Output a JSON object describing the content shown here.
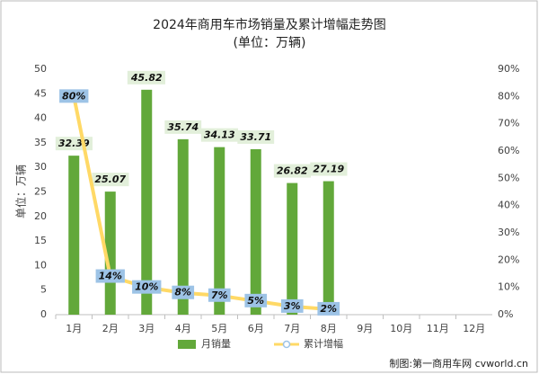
{
  "chart_data": {
    "type": "bar",
    "title": "2024年商用车市场销量及累计增幅走势图",
    "subtitle": "(单位：万辆)",
    "y_label": "单位：万辆",
    "source": "制图:第一商用车网 cvworld.cn",
    "categories": [
      "1月",
      "2月",
      "3月",
      "4月",
      "5月",
      "6月",
      "7月",
      "8月",
      "9月",
      "10月",
      "11月",
      "12月"
    ],
    "series": [
      {
        "name": "月销量",
        "type": "bar",
        "color": "#62a83a",
        "values": [
          32.39,
          25.07,
          45.82,
          35.74,
          34.13,
          33.71,
          26.82,
          27.19,
          null,
          null,
          null,
          null
        ]
      },
      {
        "name": "累计增幅",
        "type": "line",
        "axis": "y2",
        "color": "#ffd966",
        "marker_color": "#9dc3e6",
        "values": [
          80,
          14,
          10,
          8,
          7,
          5,
          3,
          2,
          null,
          null,
          null,
          null
        ],
        "value_labels": [
          "80%",
          "14%",
          "10%",
          "8%",
          "7%",
          "5%",
          "3%",
          "2%",
          null,
          null,
          null,
          null
        ]
      }
    ],
    "ylim": [
      0,
      50
    ],
    "yticks": [
      0,
      5,
      10,
      15,
      20,
      25,
      30,
      35,
      40,
      45,
      50
    ],
    "y2lim": [
      0,
      90
    ],
    "y2ticks": [
      {
        "value": 0,
        "label": "0%"
      },
      {
        "value": 10,
        "label": "10%"
      },
      {
        "value": 20,
        "label": "20%"
      },
      {
        "value": 30,
        "label": "30%"
      },
      {
        "value": 40,
        "label": "40%"
      },
      {
        "value": 50,
        "label": "50%"
      },
      {
        "value": 60,
        "label": "60%"
      },
      {
        "value": 70,
        "label": "70%"
      },
      {
        "value": 80,
        "label": "80%"
      },
      {
        "value": 90,
        "label": "90%"
      }
    ],
    "grid": false,
    "legend": "bottom"
  }
}
